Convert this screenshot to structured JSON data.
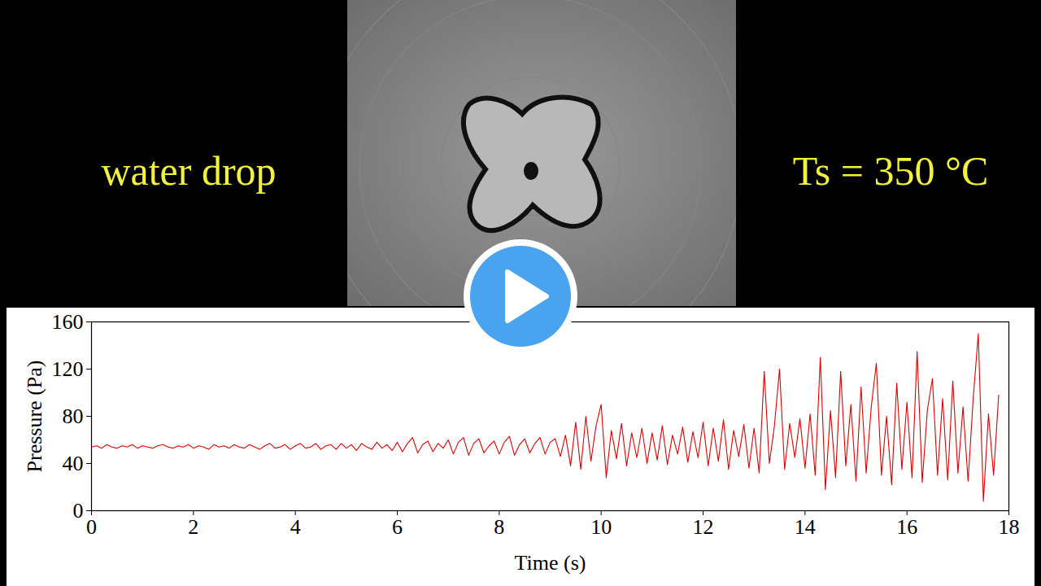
{
  "chart_data": {
    "type": "line",
    "annotations": [
      "water drop",
      "Ts = 350 °C"
    ],
    "x_label": "Time (s)",
    "y_label": "Pressure (Pa)",
    "color": "#dd0000",
    "grid": false,
    "xlim": [
      0,
      18
    ],
    "xticks": [
      0,
      2,
      4,
      6,
      8,
      10,
      12,
      14,
      16,
      18
    ],
    "ylim": [
      0,
      160
    ],
    "yticks": [
      0,
      40,
      80,
      120,
      160
    ],
    "x": [
      0,
      0.1,
      0.2,
      0.3,
      0.4,
      0.5,
      0.6,
      0.7,
      0.8,
      0.9,
      1,
      1.1,
      1.2,
      1.3,
      1.4,
      1.5,
      1.6,
      1.7,
      1.8,
      1.9,
      2,
      2.1,
      2.2,
      2.3,
      2.4,
      2.5,
      2.6,
      2.7,
      2.8,
      2.9,
      3,
      3.1,
      3.2,
      3.3,
      3.4,
      3.5,
      3.6,
      3.7,
      3.8,
      3.9,
      4,
      4.1,
      4.2,
      4.3,
      4.4,
      4.5,
      4.6,
      4.7,
      4.8,
      4.9,
      5,
      5.1,
      5.2,
      5.3,
      5.4,
      5.5,
      5.6,
      5.7,
      5.8,
      5.9,
      6,
      6.1,
      6.2,
      6.3,
      6.4,
      6.5,
      6.6,
      6.7,
      6.8,
      6.9,
      7,
      7.1,
      7.2,
      7.3,
      7.4,
      7.5,
      7.6,
      7.7,
      7.8,
      7.9,
      8,
      8.1,
      8.2,
      8.3,
      8.4,
      8.5,
      8.6,
      8.7,
      8.8,
      8.9,
      9,
      9.1,
      9.2,
      9.3,
      9.4,
      9.5,
      9.6,
      9.7,
      9.8,
      9.9,
      10,
      10.1,
      10.2,
      10.3,
      10.4,
      10.5,
      10.6,
      10.7,
      10.8,
      10.9,
      11,
      11.1,
      11.2,
      11.3,
      11.4,
      11.5,
      11.6,
      11.7,
      11.8,
      11.9,
      12,
      12.1,
      12.2,
      12.3,
      12.4,
      12.5,
      12.6,
      12.7,
      12.8,
      12.9,
      13,
      13.1,
      13.2,
      13.3,
      13.4,
      13.5,
      13.6,
      13.7,
      13.8,
      13.9,
      14,
      14.1,
      14.2,
      14.3,
      14.4,
      14.5,
      14.6,
      14.7,
      14.8,
      14.9,
      15,
      15.1,
      15.2,
      15.3,
      15.4,
      15.5,
      15.6,
      15.7,
      15.8,
      15.9,
      16,
      16.1,
      16.2,
      16.3,
      16.4,
      16.5,
      16.6,
      16.7,
      16.8,
      16.9,
      17,
      17.1,
      17.2,
      17.3,
      17.4,
      17.5,
      17.6,
      17.7,
      17.8
    ],
    "values": [
      54,
      55,
      53,
      56,
      54,
      53,
      55,
      54,
      56,
      53,
      55,
      54,
      53,
      55,
      56,
      54,
      53,
      55,
      54,
      56,
      53,
      55,
      54,
      52,
      56,
      54,
      55,
      53,
      56,
      54,
      53,
      56,
      54,
      52,
      55,
      57,
      53,
      54,
      56,
      52,
      55,
      57,
      53,
      54,
      57,
      52,
      55,
      56,
      52,
      57,
      53,
      56,
      51,
      57,
      54,
      52,
      58,
      53,
      56,
      51,
      58,
      50,
      57,
      62,
      49,
      56,
      59,
      50,
      57,
      53,
      60,
      48,
      58,
      62,
      47,
      57,
      61,
      49,
      55,
      59,
      48,
      58,
      63,
      47,
      56,
      61,
      49,
      57,
      62,
      48,
      58,
      61,
      46,
      64,
      38,
      75,
      35,
      80,
      42,
      72,
      90,
      28,
      68,
      44,
      74,
      38,
      66,
      45,
      70,
      40,
      66,
      43,
      72,
      39,
      64,
      48,
      71,
      41,
      67,
      45,
      75,
      38,
      70,
      42,
      77,
      35,
      68,
      46,
      73,
      36,
      70,
      32,
      118,
      40,
      72,
      120,
      35,
      74,
      45,
      78,
      36,
      82,
      30,
      130,
      18,
      85,
      28,
      118,
      38,
      90,
      25,
      105,
      32,
      88,
      125,
      30,
      80,
      22,
      108,
      35,
      92,
      28,
      135,
      24,
      85,
      112,
      30,
      95,
      26,
      110,
      32,
      88,
      25,
      95,
      150,
      8,
      82,
      30,
      98
    ]
  }
}
